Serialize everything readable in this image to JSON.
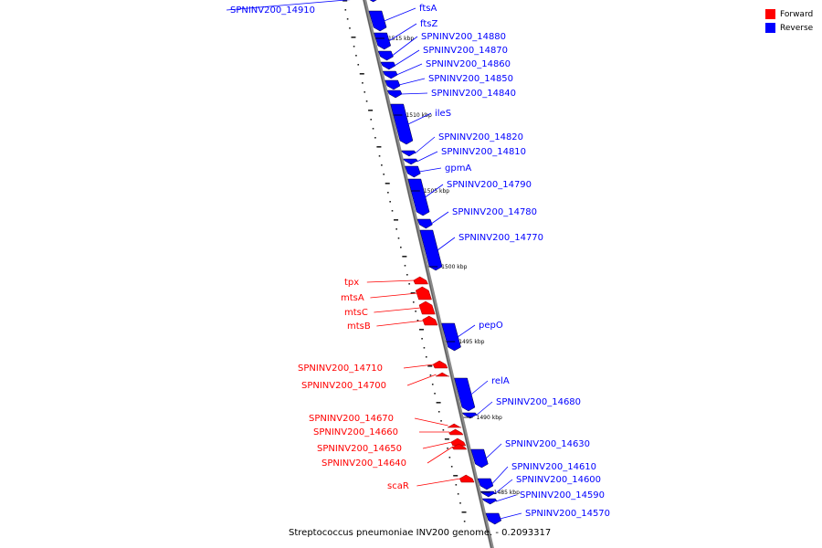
{
  "legend": {
    "forward": {
      "label": "Forward",
      "color": "#ff0000"
    },
    "reverse": {
      "label": "Reverse",
      "color": "#0000ff"
    }
  },
  "caption": "Streptococcus pneumoniae INV200 genome. - 0.2093317",
  "ticks": [
    "1515 kbp",
    "1510 kbp",
    "1505 kbp",
    "1500 kbp",
    "1495 kbp",
    "1490 kbp",
    "1485 kbp"
  ],
  "genes": [
    {
      "label": "SPNINV200_14910",
      "strand": "reverse"
    },
    {
      "label": "ftsA",
      "strand": "reverse"
    },
    {
      "label": "ftsZ",
      "strand": "reverse"
    },
    {
      "label": "SPNINV200_14880",
      "strand": "reverse"
    },
    {
      "label": "SPNINV200_14870",
      "strand": "reverse"
    },
    {
      "label": "SPNINV200_14860",
      "strand": "reverse"
    },
    {
      "label": "SPNINV200_14850",
      "strand": "reverse"
    },
    {
      "label": "SPNINV200_14840",
      "strand": "reverse"
    },
    {
      "label": "ileS",
      "strand": "reverse"
    },
    {
      "label": "SPNINV200_14820",
      "strand": "reverse"
    },
    {
      "label": "SPNINV200_14810",
      "strand": "reverse"
    },
    {
      "label": "gpmA",
      "strand": "reverse"
    },
    {
      "label": "SPNINV200_14790",
      "strand": "reverse"
    },
    {
      "label": "SPNINV200_14780",
      "strand": "reverse"
    },
    {
      "label": "SPNINV200_14770",
      "strand": "reverse"
    },
    {
      "label": "tpx",
      "strand": "forward"
    },
    {
      "label": "mtsA",
      "strand": "forward"
    },
    {
      "label": "mtsC",
      "strand": "forward"
    },
    {
      "label": "mtsB",
      "strand": "forward"
    },
    {
      "label": "pepO",
      "strand": "reverse"
    },
    {
      "label": "SPNINV200_14710",
      "strand": "forward"
    },
    {
      "label": "SPNINV200_14700",
      "strand": "forward"
    },
    {
      "label": "relA",
      "strand": "reverse"
    },
    {
      "label": "SPNINV200_14680",
      "strand": "reverse"
    },
    {
      "label": "SPNINV200_14670",
      "strand": "forward"
    },
    {
      "label": "SPNINV200_14660",
      "strand": "forward"
    },
    {
      "label": "SPNINV200_14650",
      "strand": "forward"
    },
    {
      "label": "SPNINV200_14640",
      "strand": "forward"
    },
    {
      "label": "SPNINV200_14630",
      "strand": "reverse"
    },
    {
      "label": "scaR",
      "strand": "forward"
    },
    {
      "label": "SPNINV200_14610",
      "strand": "reverse"
    },
    {
      "label": "SPNINV200_14600",
      "strand": "reverse"
    },
    {
      "label": "SPNINV200_14590",
      "strand": "reverse"
    },
    {
      "label": "SPNINV200_14570",
      "strand": "reverse"
    }
  ]
}
